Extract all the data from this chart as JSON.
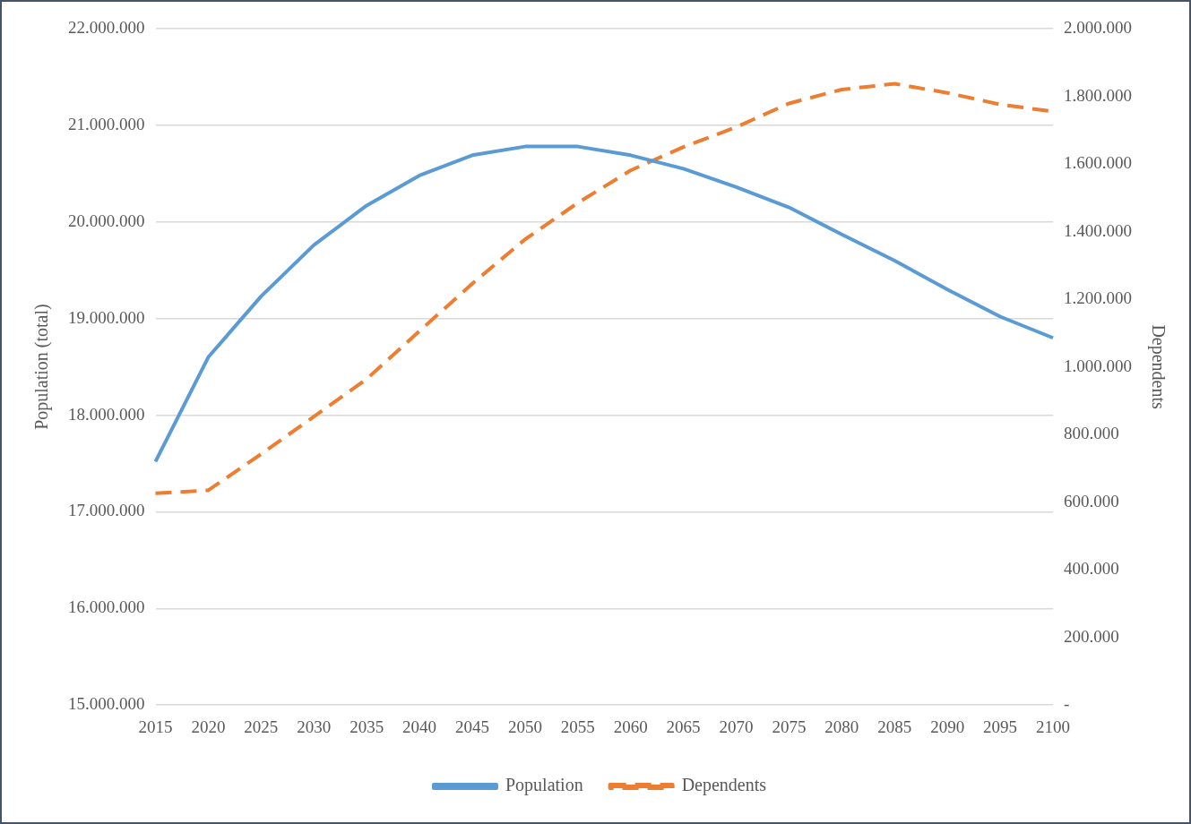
{
  "chart_data": {
    "type": "line",
    "ylabel": "Population (total)",
    "y2label": "Dependents",
    "categories": [
      "2015",
      "2020",
      "2025",
      "2030",
      "2035",
      "2040",
      "2045",
      "2050",
      "2055",
      "2060",
      "2065",
      "2070",
      "2075",
      "2080",
      "2085",
      "2090",
      "2095",
      "2100"
    ],
    "series": [
      {
        "name": "Population",
        "color": "#5b9bd5",
        "line_style": "solid",
        "values": [
          17520000,
          18600000,
          19230000,
          19760000,
          20170000,
          20480000,
          20690000,
          20780000,
          20780000,
          20690000,
          20550000,
          20360000,
          20150000,
          19870000,
          19600000,
          19300000,
          19020000,
          18800000
        ]
      },
      {
        "name": "Dependents",
        "color": "#ed7d31",
        "line_style": "dashed",
        "axis": "y2",
        "values": [
          626000,
          635000,
          742000,
          853000,
          964000,
          1106000,
          1246000,
          1377000,
          1485000,
          1581000,
          1650000,
          1709000,
          1779000,
          1820000,
          1837000,
          1810000,
          1776000,
          1755000
        ]
      }
    ],
    "ylim": [
      15000000,
      22000000
    ],
    "yticks": [
      {
        "value": 15000000,
        "label": "15.000.000"
      },
      {
        "value": 16000000,
        "label": "16.000.000"
      },
      {
        "value": 17000000,
        "label": "17.000.000"
      },
      {
        "value": 18000000,
        "label": "18.000.000"
      },
      {
        "value": 19000000,
        "label": "19.000.000"
      },
      {
        "value": 20000000,
        "label": "20.000.000"
      },
      {
        "value": 21000000,
        "label": "21.000.000"
      },
      {
        "value": 22000000,
        "label": "22.000.000"
      }
    ],
    "y2lim": [
      0,
      2000000
    ],
    "y2ticks": [
      {
        "value": 0,
        "label": "-"
      },
      {
        "value": 200000,
        "label": "200.000"
      },
      {
        "value": 400000,
        "label": "400.000"
      },
      {
        "value": 600000,
        "label": "600.000"
      },
      {
        "value": 800000,
        "label": "800.000"
      },
      {
        "value": 1000000,
        "label": "1.000.000"
      },
      {
        "value": 1200000,
        "label": "1.200.000"
      },
      {
        "value": 1400000,
        "label": "1.400.000"
      },
      {
        "value": 1600000,
        "label": "1.600.000"
      },
      {
        "value": 1800000,
        "label": "1.800.000"
      },
      {
        "value": 2000000,
        "label": "2.000.000"
      }
    ],
    "grid": "y",
    "legend": "bottom",
    "marker": "none"
  }
}
